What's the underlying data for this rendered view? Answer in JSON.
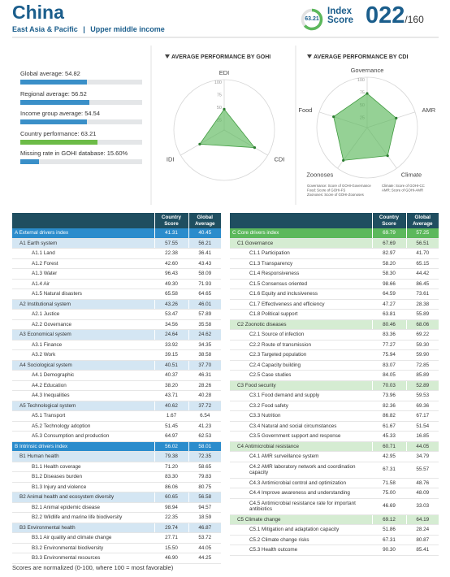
{
  "header": {
    "country": "China",
    "region": "East Asia & Pacific",
    "separator": "|",
    "income": "Upper middle income",
    "score": 63.21,
    "index_label": "Index",
    "score_label": "Score",
    "rank": "022",
    "rank_total": "/160",
    "color": "#1b5e8c",
    "ring_color": "#5cb85c"
  },
  "benchmarks": [
    {
      "label": "Global average:",
      "value": 54.82,
      "color": "#3a8fc8"
    },
    {
      "label": "Regional average:",
      "value": 56.52,
      "color": "#3a8fc8"
    },
    {
      "label": "Income group average:",
      "value": 54.54,
      "color": "#3a8fc8"
    },
    {
      "label": "Country performance:",
      "value": 63.21,
      "color": "#6cbb47"
    },
    {
      "label": "Missing rate in GOHI database:",
      "value": 15.6,
      "value_label": "15.60%",
      "color": "#3a8fc8"
    }
  ],
  "chart_data": [
    {
      "type": "radar",
      "title": "AVERAGE PERFORMANCE BY GOHI",
      "categories": [
        "EDI",
        "CDI",
        "IDI"
      ],
      "values": [
        41.31,
        69.79,
        56.02
      ],
      "rlim": [
        0,
        100
      ],
      "rticks": [
        25,
        50,
        75,
        100
      ],
      "color": "#5cb85c"
    },
    {
      "type": "radar",
      "title": "AVERAGE PERFORMANCE BY CDI",
      "categories": [
        "Governance",
        "AMR",
        "Climate",
        "Zoonoses",
        "Food"
      ],
      "values": [
        67.69,
        60.71,
        69.12,
        80.46,
        70.03
      ],
      "rlim": [
        0,
        100
      ],
      "rticks": [
        25,
        50,
        75,
        100
      ],
      "color": "#5cb85c",
      "notes": [
        "Governance: Score of GOHI-Governance",
        "Food: Score of GOHI-FS",
        "Zoonoses: Score of GOHI-Zoonoses",
        "Climate: Score of GOHI-CC",
        "AMR: Score of GOHI-AMR"
      ]
    }
  ],
  "tables": [
    {
      "columns": [
        "Country Score",
        "Global Average"
      ],
      "accent": "#2b8ccc",
      "light": "#d4e6f3",
      "rows": [
        [
          "A External drivers index",
          "41.31",
          "40.45"
        ],
        [
          "A1 Earth system",
          "57.55",
          "56.21"
        ],
        [
          "A1.1 Land",
          "22.38",
          "36.41"
        ],
        [
          "A1.2 Forest",
          "42.60",
          "43.43"
        ],
        [
          "A1.3 Water",
          "96.43",
          "58.09"
        ],
        [
          "A1.4 Air",
          "49.30",
          "71.93"
        ],
        [
          "A1.5 Natural disasters",
          "65.58",
          "64.65"
        ],
        [
          "A2 Institutional system",
          "43.26",
          "46.01"
        ],
        [
          "A2.1 Justice",
          "53.47",
          "57.89"
        ],
        [
          "A2.2 Governance",
          "34.56",
          "35.58"
        ],
        [
          "A3 Economical system",
          "24.64",
          "24.62"
        ],
        [
          "A3.1 Finance",
          "33.92",
          "34.35"
        ],
        [
          "A3.2 Work",
          "39.15",
          "38.58"
        ],
        [
          "A4 Sociological system",
          "40.51",
          "37.70"
        ],
        [
          "A4.1 Demographic",
          "40.37",
          "46.31"
        ],
        [
          "A4.2 Education",
          "38.20",
          "28.26"
        ],
        [
          "A4.3 Inequalities",
          "43.71",
          "40.28"
        ],
        [
          "A5 Technological system",
          "40.62",
          "37.72"
        ],
        [
          "A5.1 Transport",
          "1.67",
          "6.54"
        ],
        [
          "A5.2 Technology adoption",
          "51.45",
          "41.23"
        ],
        [
          "A5.3 Consumption and production",
          "64.97",
          "62.53"
        ],
        [
          "B Intrinsic drivers index",
          "56.02",
          "58.01"
        ],
        [
          "B1 Human health",
          "79.38",
          "72.35"
        ],
        [
          "B1.1 Health coverage",
          "71.20",
          "58.65"
        ],
        [
          "B1.2 Diseases burden",
          "83.30",
          "79.83"
        ],
        [
          "B1.3 Injury and violence",
          "86.06",
          "80.75"
        ],
        [
          "B2 Animal health and ecosystem diversity",
          "60.65",
          "56.58"
        ],
        [
          "B2.1 Animal epidemic disease",
          "98.94",
          "94.57"
        ],
        [
          "B2.2 Wildlife and marine life biodiversity",
          "22.35",
          "18.59"
        ],
        [
          "B3 Environmental health",
          "29.74",
          "46.87"
        ],
        [
          "B3.1 Air quality and climate change",
          "27.71",
          "53.72"
        ],
        [
          "B3.2 Environmental biodiversity",
          "15.50",
          "44.05"
        ],
        [
          "B3.3 Environmental resources",
          "46.90",
          "44.25"
        ]
      ]
    },
    {
      "columns": [
        "Country Score",
        "Global Average"
      ],
      "accent": "#5cb85c",
      "light": "#d5ecd2",
      "rows": [
        [
          "C Core drivers index",
          "69.79",
          "57.25"
        ],
        [
          "C1 Governance",
          "67.69",
          "56.51"
        ],
        [
          "C1.1 Participation",
          "82.97",
          "41.70"
        ],
        [
          "C1.3 Transparency",
          "58.20",
          "65.15"
        ],
        [
          "C1.4 Responsiveness",
          "58.30",
          "44.42"
        ],
        [
          "C1.5 Consensus oriented",
          "98.66",
          "86.45"
        ],
        [
          "C1.6 Equity and inclusiveness",
          "64.59",
          "73.61"
        ],
        [
          "C1.7 Effectiveness and efficiency",
          "47.27",
          "28.38"
        ],
        [
          "C1.8 Political support",
          "63.81",
          "55.89"
        ],
        [
          "C2 Zoonotic diseases",
          "80.46",
          "68.06"
        ],
        [
          "C2.1 Source of infection",
          "83.36",
          "69.22"
        ],
        [
          "C2.2 Route of transmission",
          "77.27",
          "59.30"
        ],
        [
          "C2.3 Targeted population",
          "75.94",
          "59.90"
        ],
        [
          "C2.4 Capacity building",
          "83.07",
          "72.85"
        ],
        [
          "C2.5 Case studies",
          "84.05",
          "85.89"
        ],
        [
          "C3 Food security",
          "70.03",
          "52.89"
        ],
        [
          "C3.1 Food demand and supply",
          "73.96",
          "59.53"
        ],
        [
          "C3.2 Food safety",
          "82.36",
          "69.36"
        ],
        [
          "C3.3 Nutrition",
          "86.82",
          "67.17"
        ],
        [
          "C3.4 Natural and social circumstances",
          "61.67",
          "51.54"
        ],
        [
          "C3.5 Government support and response",
          "45.33",
          "16.85"
        ],
        [
          "C4 Antimicrobial resistance",
          "60.71",
          "44.05"
        ],
        [
          "C4.1 AMR surveillance system",
          "42.95",
          "34.79"
        ],
        [
          "C4.2 AMR laboratory network and coordination capacity",
          "67.31",
          "55.57"
        ],
        [
          "C4.3 Antimicrobial control and optimization",
          "71.58",
          "48.76"
        ],
        [
          "C4.4 Improve awareness and understanding",
          "75.00",
          "48.09"
        ],
        [
          "C4.5 Antimicrobial resistance rate for important antibiotics",
          "46.69",
          "33.03"
        ],
        [
          "C5 Climate change",
          "69.12",
          "64.19"
        ],
        [
          "C5.1 Mitigation and adaptation capacity",
          "51.86",
          "28.24"
        ],
        [
          "C5.2 Climate change risks",
          "67.31",
          "80.87"
        ],
        [
          "C5.3 Health outcome",
          "90.30",
          "85.41"
        ]
      ]
    }
  ],
  "footnote": "Scores are normalized (0-100, where 100 = most favorable)"
}
